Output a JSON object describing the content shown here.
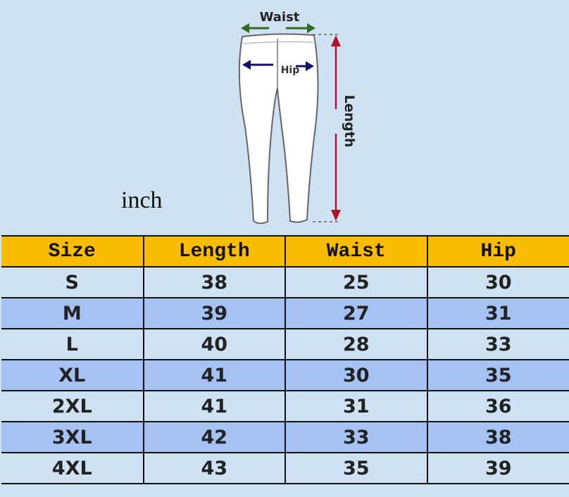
{
  "unit_label": "inch",
  "diagram": {
    "waist_label": "Waist",
    "hip_label": "Hip",
    "length_label": "Length",
    "colors": {
      "waist_arrow": "#2e6b1e",
      "hip_arrow": "#12126e",
      "length_arrow": "#b0102a"
    }
  },
  "table": {
    "headers": [
      "Size",
      "Length",
      "Waist",
      "Hip"
    ],
    "rows": [
      [
        "S",
        "38",
        "25",
        "30"
      ],
      [
        "M",
        "39",
        "27",
        "31"
      ],
      [
        "L",
        "40",
        "28",
        "33"
      ],
      [
        "XL",
        "41",
        "30",
        "35"
      ],
      [
        "2XL",
        "41",
        "31",
        "36"
      ],
      [
        "3XL",
        "42",
        "33",
        "38"
      ],
      [
        "4XL",
        "43",
        "35",
        "39"
      ]
    ],
    "colors": {
      "header": "#fbbc04",
      "row_light": "#cfe2f3",
      "row_dark": "#a4c2f4"
    }
  }
}
